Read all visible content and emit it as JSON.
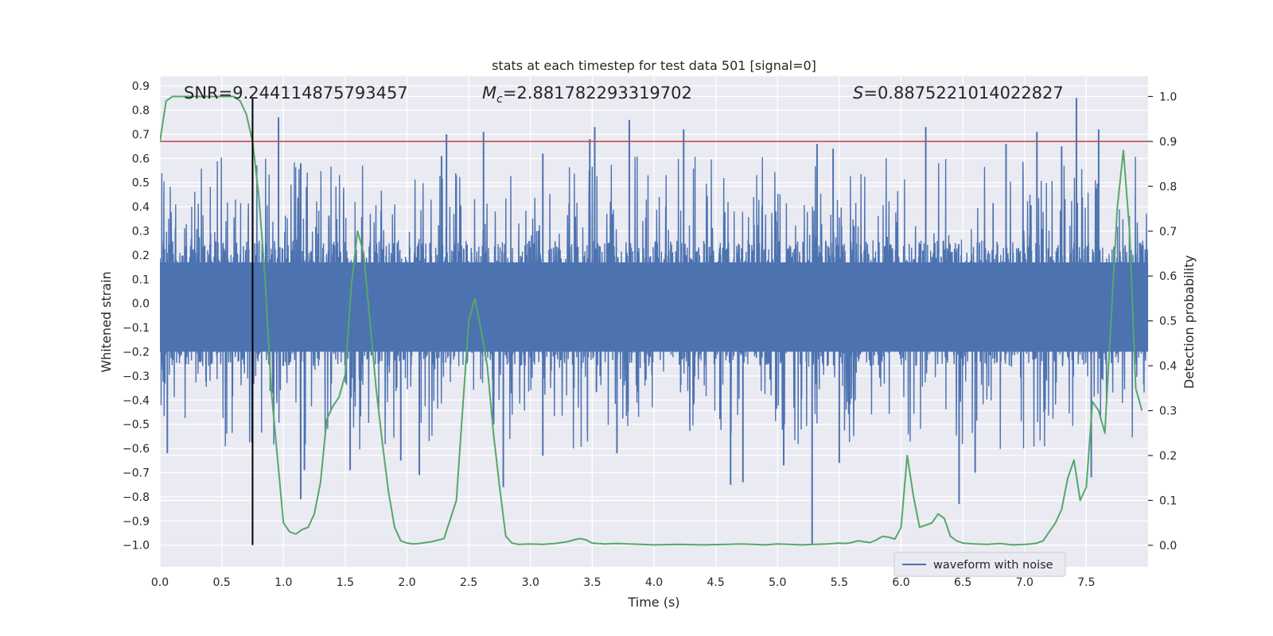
{
  "chart_data": {
    "type": "line",
    "title": "stats at each timestep for test data 501 [signal=0]",
    "xlabel": "Time (s)",
    "ylabel": "Whitened strain",
    "y2label": "Detection probability",
    "xlim": [
      0.0,
      8.0
    ],
    "ylim": [
      -1.09,
      0.94
    ],
    "y2lim": [
      -0.048,
      1.045
    ],
    "xticks": [
      0.0,
      0.5,
      1.0,
      1.5,
      2.0,
      2.5,
      3.0,
      3.5,
      4.0,
      4.5,
      5.0,
      5.5,
      6.0,
      6.5,
      7.0,
      7.5
    ],
    "xtick_labels": [
      "0.0",
      "0.5",
      "1.0",
      "1.5",
      "2.0",
      "2.5",
      "3.0",
      "3.5",
      "4.0",
      "4.5",
      "5.0",
      "5.5",
      "6.0",
      "6.5",
      "7.0",
      "7.5"
    ],
    "yticks": [
      0.9,
      0.8,
      0.7,
      0.6,
      0.5,
      0.4,
      0.3,
      0.2,
      0.1,
      0.0,
      -0.1,
      -0.2,
      -0.3,
      -0.4,
      -0.5,
      -0.6,
      -0.7,
      -0.8,
      -0.9,
      -1.0
    ],
    "ytick_labels": [
      "0.9",
      "0.8",
      "0.7",
      "0.6",
      "0.5",
      "0.4",
      "0.3",
      "0.2",
      "0.1",
      "0.0",
      "−0.1",
      "−0.2",
      "−0.3",
      "−0.4",
      "−0.5",
      "−0.6",
      "−0.7",
      "−0.8",
      "−0.9",
      "−1.0"
    ],
    "y2ticks": [
      1.0,
      0.9,
      0.8,
      0.7,
      0.6,
      0.5,
      0.4,
      0.3,
      0.2,
      0.1,
      0.0
    ],
    "y2tick_labels": [
      "1.0",
      "0.9",
      "0.8",
      "0.7",
      "0.6",
      "0.5",
      "0.4",
      "0.3",
      "0.2",
      "0.1",
      "0.0"
    ],
    "annotations": [
      {
        "name": "snr-annotation",
        "prefix": "SNR",
        "subscript": "",
        "value": "=9.244114875793457",
        "italic": false
      },
      {
        "name": "chirp-mass-annotation",
        "prefix": "M",
        "subscript": "c",
        "value": "=2.881782293319702",
        "italic": true
      },
      {
        "name": "score-annotation",
        "prefix": "S",
        "subscript": "",
        "value": "=0.8875221014022827",
        "italic": true
      }
    ],
    "threshold_line": {
      "axis": "y2",
      "value": 0.9,
      "color": "#c44e52"
    },
    "marker_line": {
      "x": 0.75,
      "y_from": -1.0,
      "y_to": 0.85,
      "color": "#000000"
    },
    "series": [
      {
        "name": "waveform with noise",
        "axis": "y",
        "color": "#4c72b0",
        "kind": "noise",
        "amplitude": 0.26,
        "spike_envelope": [
          0.5,
          0.75
        ],
        "spikes": [
          {
            "x": 0.96,
            "y": 0.77
          },
          {
            "x": 1.14,
            "y": 0.58
          },
          {
            "x": 2.28,
            "y": 0.61
          },
          {
            "x": 2.32,
            "y": 0.7
          },
          {
            "x": 2.62,
            "y": 0.71
          },
          {
            "x": 3.1,
            "y": 0.62
          },
          {
            "x": 3.48,
            "y": 0.68
          },
          {
            "x": 3.52,
            "y": 0.73
          },
          {
            "x": 3.8,
            "y": 0.76
          },
          {
            "x": 4.24,
            "y": 0.72
          },
          {
            "x": 5.32,
            "y": 0.66
          },
          {
            "x": 5.45,
            "y": 0.64
          },
          {
            "x": 6.2,
            "y": 0.73
          },
          {
            "x": 6.85,
            "y": 0.66
          },
          {
            "x": 7.1,
            "y": 0.71
          },
          {
            "x": 7.42,
            "y": 0.85
          },
          {
            "x": 7.6,
            "y": 0.72
          },
          {
            "x": 7.3,
            "y": 0.65
          },
          {
            "x": 0.06,
            "y": -0.62
          },
          {
            "x": 1.14,
            "y": -0.81
          },
          {
            "x": 1.17,
            "y": -0.69
          },
          {
            "x": 1.54,
            "y": -0.69
          },
          {
            "x": 1.95,
            "y": -0.65
          },
          {
            "x": 2.1,
            "y": -0.71
          },
          {
            "x": 2.78,
            "y": -0.76
          },
          {
            "x": 3.1,
            "y": -0.63
          },
          {
            "x": 3.7,
            "y": -0.62
          },
          {
            "x": 4.62,
            "y": -0.75
          },
          {
            "x": 4.72,
            "y": -0.74
          },
          {
            "x": 5.28,
            "y": -1.0
          },
          {
            "x": 5.05,
            "y": -0.67
          },
          {
            "x": 5.5,
            "y": -0.66
          },
          {
            "x": 6.47,
            "y": -0.83
          },
          {
            "x": 6.6,
            "y": -0.7
          },
          {
            "x": 7.54,
            "y": -0.72
          }
        ]
      },
      {
        "name": "detection probability",
        "axis": "y2",
        "color": "#55a868",
        "kind": "line",
        "x": [
          0.0,
          0.05,
          0.1,
          0.2,
          0.3,
          0.4,
          0.5,
          0.6,
          0.65,
          0.7,
          0.75,
          0.8,
          0.85,
          0.9,
          0.95,
          1.0,
          1.05,
          1.1,
          1.15,
          1.2,
          1.25,
          1.3,
          1.35,
          1.4,
          1.45,
          1.5,
          1.55,
          1.6,
          1.65,
          1.7,
          1.75,
          1.8,
          1.85,
          1.9,
          1.95,
          2.0,
          2.05,
          2.1,
          2.2,
          2.3,
          2.4,
          2.45,
          2.5,
          2.55,
          2.6,
          2.65,
          2.7,
          2.75,
          2.8,
          2.85,
          2.9,
          3.0,
          3.1,
          3.2,
          3.3,
          3.35,
          3.4,
          3.45,
          3.5,
          3.6,
          3.7,
          3.8,
          3.9,
          4.0,
          4.2,
          4.4,
          4.6,
          4.7,
          4.8,
          4.9,
          5.0,
          5.1,
          5.2,
          5.3,
          5.4,
          5.5,
          5.55,
          5.6,
          5.65,
          5.7,
          5.75,
          5.8,
          5.85,
          5.9,
          5.95,
          6.0,
          6.05,
          6.1,
          6.15,
          6.2,
          6.25,
          6.3,
          6.35,
          6.4,
          6.45,
          6.5,
          6.6,
          6.7,
          6.8,
          6.9,
          7.0,
          7.05,
          7.1,
          7.15,
          7.2,
          7.25,
          7.3,
          7.35,
          7.4,
          7.45,
          7.5,
          7.55,
          7.6,
          7.65,
          7.7,
          7.75,
          7.8,
          7.85,
          7.9,
          7.95
        ],
        "y": [
          0.9,
          0.99,
          1.0,
          1.0,
          1.0,
          1.0,
          1.0,
          1.0,
          0.99,
          0.96,
          0.9,
          0.78,
          0.6,
          0.35,
          0.2,
          0.05,
          0.03,
          0.025,
          0.035,
          0.04,
          0.07,
          0.14,
          0.28,
          0.31,
          0.33,
          0.38,
          0.58,
          0.7,
          0.65,
          0.5,
          0.35,
          0.23,
          0.12,
          0.04,
          0.01,
          0.005,
          0.003,
          0.004,
          0.008,
          0.015,
          0.1,
          0.3,
          0.5,
          0.55,
          0.48,
          0.4,
          0.25,
          0.13,
          0.02,
          0.005,
          0.002,
          0.003,
          0.002,
          0.004,
          0.008,
          0.012,
          0.015,
          0.012,
          0.005,
          0.003,
          0.004,
          0.003,
          0.002,
          0.001,
          0.002,
          0.001,
          0.002,
          0.003,
          0.002,
          0.001,
          0.003,
          0.002,
          0.001,
          0.002,
          0.003,
          0.005,
          0.004,
          0.006,
          0.01,
          0.008,
          0.006,
          0.012,
          0.02,
          0.018,
          0.014,
          0.04,
          0.2,
          0.11,
          0.04,
          0.045,
          0.05,
          0.07,
          0.06,
          0.02,
          0.01,
          0.005,
          0.003,
          0.002,
          0.004,
          0.001,
          0.002,
          0.003,
          0.005,
          0.01,
          0.03,
          0.05,
          0.08,
          0.15,
          0.19,
          0.1,
          0.13,
          0.32,
          0.3,
          0.25,
          0.5,
          0.75,
          0.88,
          0.7,
          0.35,
          0.3
        ]
      }
    ],
    "legend": {
      "entries": [
        "waveform with noise"
      ],
      "placement": "lower-right"
    }
  }
}
